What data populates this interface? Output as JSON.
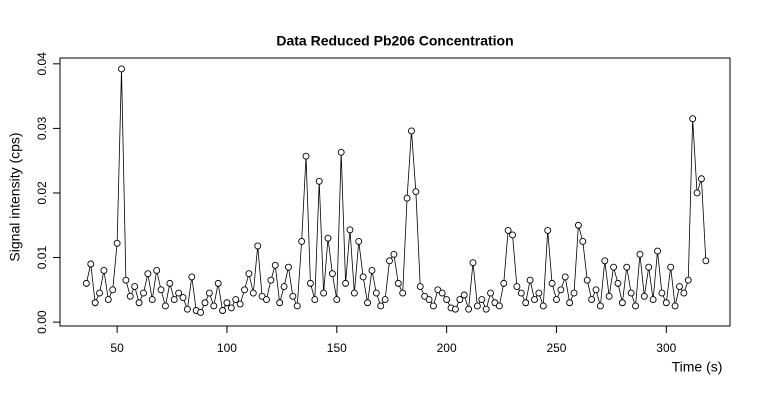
{
  "chart_data": {
    "type": "line",
    "title": "Data Reduced Pb206 Concentration",
    "x_label": "Time (s)",
    "y_label": "Signal intensity (cps)",
    "markers": true,
    "color": "#000000",
    "xlim": [
      24,
      329
    ],
    "ylim": [
      -0.0006,
      0.0409
    ],
    "xticks": [
      50,
      100,
      150,
      200,
      250,
      300
    ],
    "yticks": [
      {
        "value": 0,
        "label": "0.00"
      },
      {
        "value": 0.01,
        "label": "0.01"
      },
      {
        "value": 0.02,
        "label": "0.02"
      },
      {
        "value": 0.03,
        "label": "0.03"
      },
      {
        "value": 0.04,
        "label": "0.04"
      }
    ],
    "x": [
      36,
      38,
      40,
      42,
      44,
      46,
      48,
      50,
      52,
      54,
      56,
      58,
      60,
      62,
      64,
      66,
      68,
      70,
      72,
      74,
      76,
      78,
      80,
      82,
      84,
      86,
      88,
      90,
      92,
      94,
      96,
      98,
      100,
      102,
      104,
      106,
      108,
      110,
      112,
      114,
      116,
      118,
      120,
      122,
      124,
      126,
      128,
      130,
      132,
      134,
      136,
      138,
      140,
      142,
      144,
      146,
      148,
      150,
      152,
      154,
      156,
      158,
      160,
      162,
      164,
      166,
      168,
      170,
      172,
      174,
      176,
      178,
      180,
      182,
      184,
      186,
      188,
      190,
      192,
      194,
      196,
      198,
      200,
      202,
      204,
      206,
      208,
      210,
      212,
      214,
      216,
      218,
      220,
      222,
      224,
      226,
      228,
      230,
      232,
      234,
      236,
      238,
      240,
      242,
      244,
      246,
      248,
      250,
      252,
      254,
      256,
      258,
      260,
      262,
      264,
      266,
      268,
      270,
      272,
      274,
      276,
      278,
      280,
      282,
      284,
      286,
      288,
      290,
      292,
      294,
      296,
      298,
      300,
      302,
      304,
      306,
      308,
      310,
      312,
      314,
      316,
      318
    ],
    "values": [
      0.006,
      0.009,
      0.003,
      0.0045,
      0.008,
      0.0035,
      0.005,
      0.0122,
      0.0392,
      0.0065,
      0.004,
      0.0055,
      0.003,
      0.0045,
      0.0075,
      0.0035,
      0.008,
      0.005,
      0.0025,
      0.006,
      0.0035,
      0.0045,
      0.0038,
      0.002,
      0.007,
      0.0018,
      0.0015,
      0.003,
      0.0045,
      0.0025,
      0.006,
      0.0018,
      0.003,
      0.0022,
      0.0035,
      0.0028,
      0.005,
      0.0075,
      0.0045,
      0.0118,
      0.004,
      0.0035,
      0.0065,
      0.0088,
      0.003,
      0.0055,
      0.0085,
      0.004,
      0.0025,
      0.0125,
      0.0257,
      0.006,
      0.0035,
      0.0218,
      0.0045,
      0.013,
      0.0075,
      0.0035,
      0.0263,
      0.006,
      0.0143,
      0.0045,
      0.0125,
      0.007,
      0.003,
      0.008,
      0.0045,
      0.0025,
      0.0035,
      0.0095,
      0.0105,
      0.006,
      0.0045,
      0.0192,
      0.0296,
      0.0202,
      0.0055,
      0.004,
      0.0035,
      0.0025,
      0.005,
      0.0045,
      0.0035,
      0.0022,
      0.002,
      0.0035,
      0.0042,
      0.002,
      0.0092,
      0.0025,
      0.0035,
      0.002,
      0.0045,
      0.003,
      0.0025,
      0.006,
      0.0142,
      0.0135,
      0.0055,
      0.0045,
      0.003,
      0.0065,
      0.0035,
      0.0045,
      0.0025,
      0.0142,
      0.006,
      0.0035,
      0.005,
      0.007,
      0.003,
      0.0045,
      0.015,
      0.0125,
      0.0065,
      0.0035,
      0.005,
      0.0025,
      0.0095,
      0.004,
      0.0085,
      0.006,
      0.003,
      0.0085,
      0.0045,
      0.0025,
      0.0105,
      0.004,
      0.0085,
      0.0035,
      0.011,
      0.0045,
      0.003,
      0.0085,
      0.0025,
      0.0055,
      0.0045,
      0.0065,
      0.0315,
      0.02,
      0.0222,
      0.0095
    ]
  }
}
